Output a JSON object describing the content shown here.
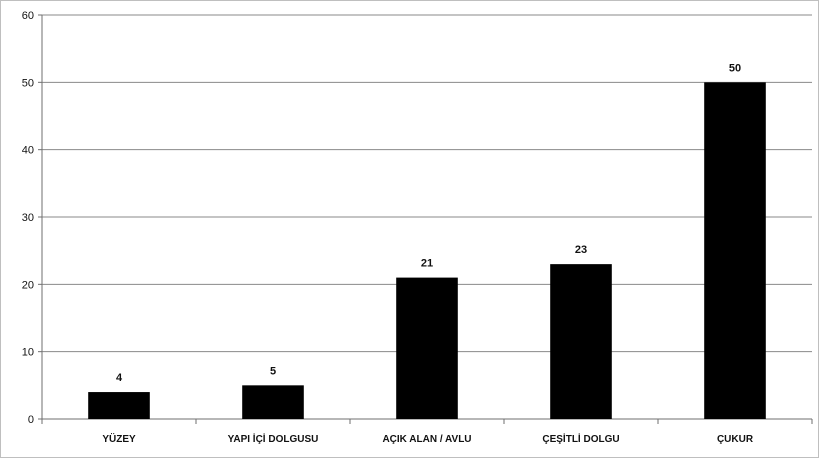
{
  "chart_data": {
    "type": "bar",
    "categories": [
      "YÜZEY",
      "YAPI İÇİ DOLGUSU",
      "AÇIK ALAN / AVLU",
      "ÇEŞİTLİ DOLGU",
      "ÇUKUR"
    ],
    "values": [
      4,
      5,
      21,
      23,
      50
    ],
    "data_labels": [
      "4",
      "5",
      "21",
      "23",
      "50"
    ],
    "ylim": [
      0,
      60
    ],
    "y_ticks": [
      "0",
      "10",
      "20",
      "30",
      "40",
      "50",
      "60"
    ],
    "grid": true,
    "legend": "none",
    "colors": {
      "bars": "#000000",
      "grid": "#8a8a8a",
      "axis": "#6f6f6f",
      "text": "#111111",
      "frame": "#bfbfbf"
    }
  }
}
